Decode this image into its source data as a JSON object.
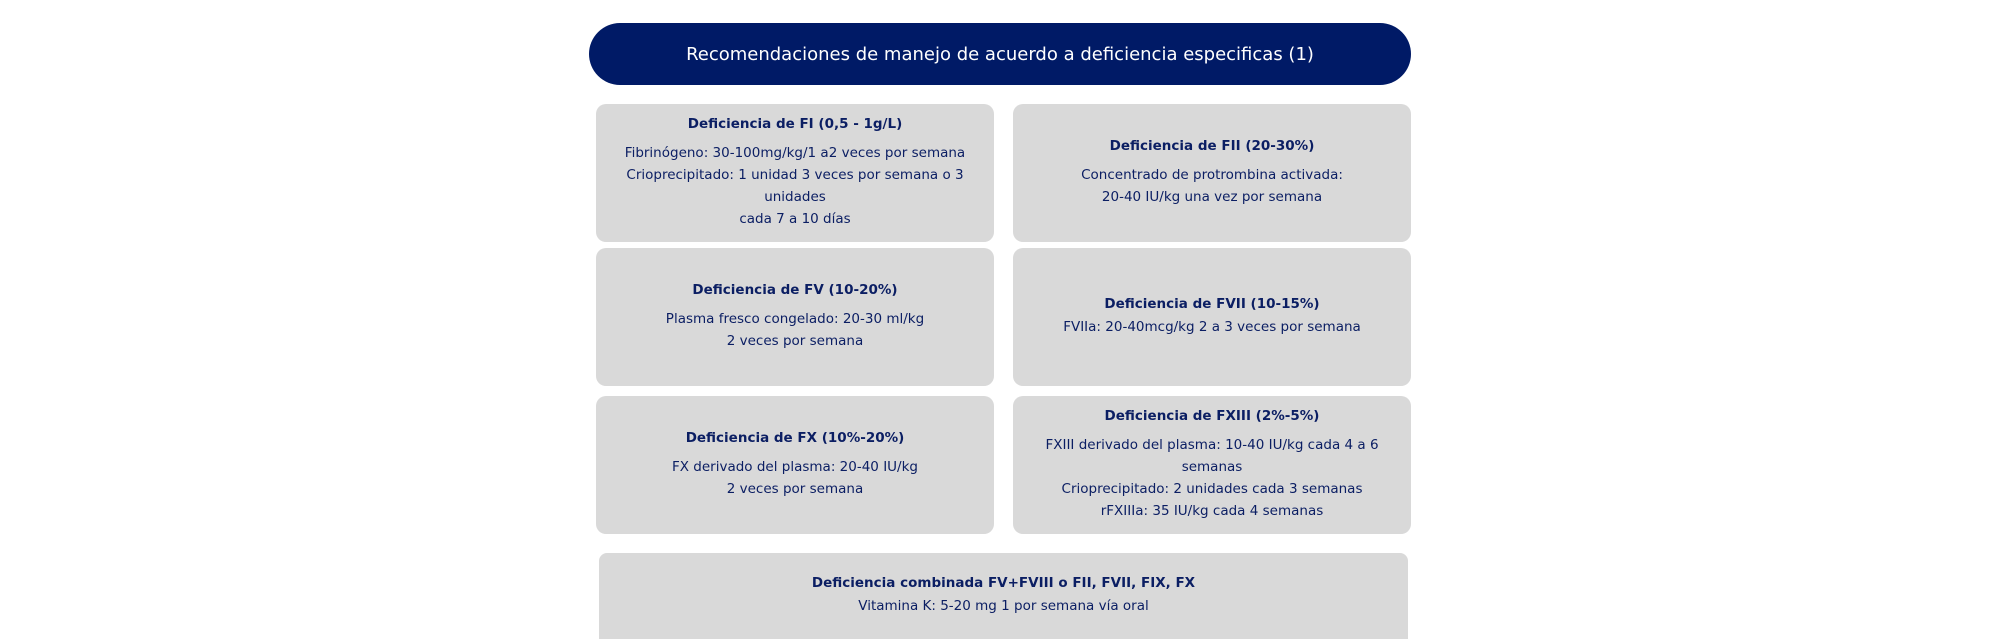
{
  "header": {
    "title": "Recomendaciones de manejo de acuerdo a deficiencia especificas (1)"
  },
  "cards": [
    {
      "title": "Deficiencia de FI (0,5 - 1g/L)",
      "lines": [
        "Fibrinógeno: 30-100mg/kg/1 a2 veces por semana",
        "Crioprecipitado: 1 unidad 3 veces por semana o 3 unidades",
        "cada 7 a 10 días"
      ]
    },
    {
      "title": "Deficiencia de FII (20-30%)",
      "lines": [
        "Concentrado de protrombina activada:",
        "20-40 IU/kg una vez por semana"
      ]
    },
    {
      "title": "Deficiencia de FV (10-20%)",
      "lines": [
        "Plasma fresco congelado: 20-30 ml/kg",
        "2 veces por semana"
      ]
    },
    {
      "title": "Deficiencia de FVII (10-15%)",
      "lines": [
        "FVIIa: 20-40mcg/kg 2 a 3 veces por semana"
      ]
    },
    {
      "title": "Deficiencia de FX (10%-20%)",
      "lines": [
        "FX derivado del plasma: 20-40 IU/kg",
        "2 veces por semana"
      ]
    },
    {
      "title": "Deficiencia de FXIII (2%-5%)",
      "lines": [
        "FXIII derivado del plasma: 10-40 IU/kg cada 4 a 6 semanas",
        "Crioprecipitado: 2 unidades cada 3 semanas",
        "rFXIIIa: 35 IU/kg cada 4 semanas"
      ]
    },
    {
      "title": "Deficiencia combinada FV+FVIII o FII, FVII, FIX, FX",
      "lines": [
        "Vitamina K: 5-20 mg 1 por semana vía oral"
      ]
    }
  ]
}
